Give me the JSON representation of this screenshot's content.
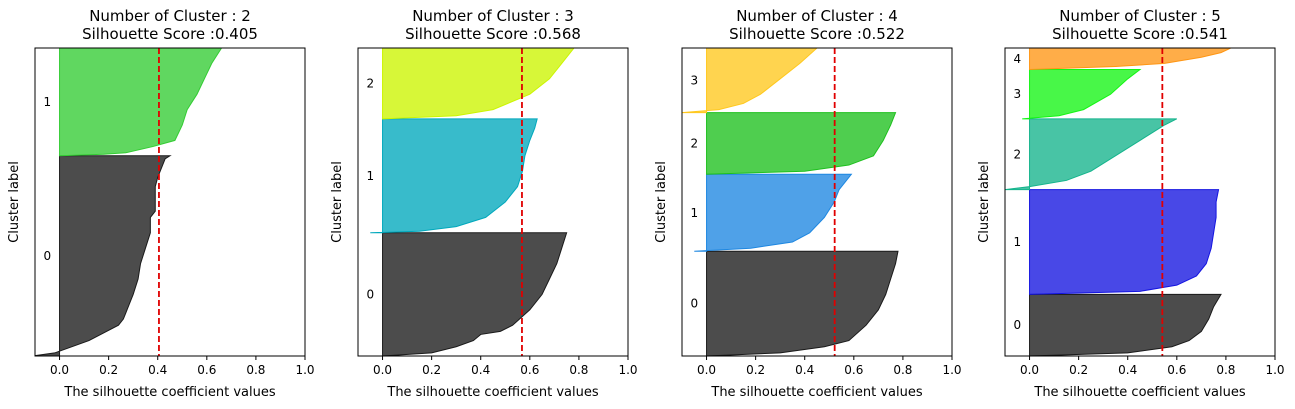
{
  "chart_data": [
    {
      "type": "area",
      "title_line1": "Number of Cluster : 2",
      "title_line2": "Silhouette Score :0.405",
      "xlabel": "The silhouette coefficient values",
      "ylabel": "Cluster label",
      "xlim": [
        -0.1,
        1.0
      ],
      "xticks": [
        "0.0",
        "0.2",
        "0.4",
        "0.6",
        "0.8",
        "1.0"
      ],
      "xtick_values": [
        0.0,
        0.2,
        0.4,
        0.6,
        0.8,
        1.0
      ],
      "ylim": [
        0,
        100
      ],
      "silhouette_score": 0.405,
      "clusters": [
        {
          "label": "0",
          "color": "#1a1a1a",
          "y_start": 0,
          "y_end": 65,
          "profile": [
            [
              0,
              -0.11
            ],
            [
              1,
              -0.02
            ],
            [
              5,
              0.12
            ],
            [
              10,
              0.24
            ],
            [
              12,
              0.26
            ],
            [
              14,
              0.27
            ],
            [
              18,
              0.29
            ],
            [
              20,
              0.3
            ],
            [
              25,
              0.32
            ],
            [
              30,
              0.33
            ],
            [
              35,
              0.35
            ],
            [
              40,
              0.37
            ],
            [
              45,
              0.37
            ],
            [
              47,
              0.39
            ],
            [
              48,
              0.39
            ],
            [
              50,
              0.39
            ],
            [
              55,
              0.39
            ],
            [
              58,
              0.4
            ],
            [
              62,
              0.42
            ],
            [
              64,
              0.43
            ],
            [
              65,
              0.45
            ]
          ]
        },
        {
          "label": "1",
          "color": "#33cc33",
          "y_start": 65,
          "y_end": 100,
          "profile": [
            [
              65,
              0.0
            ],
            [
              65.5,
              0.18
            ],
            [
              66,
              0.27
            ],
            [
              68,
              0.38
            ],
            [
              70,
              0.47
            ],
            [
              75,
              0.5
            ],
            [
              80,
              0.52
            ],
            [
              85,
              0.56
            ],
            [
              90,
              0.59
            ],
            [
              95,
              0.62
            ],
            [
              100,
              0.66
            ]
          ]
        }
      ]
    },
    {
      "type": "area",
      "title_line1": "Number of Cluster : 3",
      "title_line2": "Silhouette Score :0.568",
      "xlabel": "The silhouette coefficient values",
      "ylabel": "Cluster label",
      "xlim": [
        -0.1,
        1.0
      ],
      "xticks": [
        "0.0",
        "0.2",
        "0.4",
        "0.6",
        "0.8",
        "1.0"
      ],
      "xtick_values": [
        0.0,
        0.2,
        0.4,
        0.6,
        0.8,
        1.0
      ],
      "ylim": [
        0,
        100
      ],
      "silhouette_score": 0.568,
      "clusters": [
        {
          "label": "0",
          "color": "#1a1a1a",
          "y_start": 0,
          "y_end": 40,
          "profile": [
            [
              0,
              0.0
            ],
            [
              1,
              0.2
            ],
            [
              3,
              0.3
            ],
            [
              5,
              0.37
            ],
            [
              7,
              0.4
            ],
            [
              8,
              0.48
            ],
            [
              10,
              0.53
            ],
            [
              15,
              0.6
            ],
            [
              20,
              0.65
            ],
            [
              25,
              0.68
            ],
            [
              30,
              0.71
            ],
            [
              35,
              0.73
            ],
            [
              40,
              0.75
            ]
          ]
        },
        {
          "label": "1",
          "color": "#00a8bc",
          "y_start": 40,
          "y_end": 77,
          "profile": [
            [
              40,
              -0.05
            ],
            [
              40.5,
              0.15
            ],
            [
              42,
              0.3
            ],
            [
              45,
              0.42
            ],
            [
              50,
              0.5
            ],
            [
              55,
              0.55
            ],
            [
              60,
              0.57
            ],
            [
              65,
              0.58
            ],
            [
              70,
              0.6
            ],
            [
              74,
              0.62
            ],
            [
              77,
              0.63
            ]
          ]
        },
        {
          "label": "2",
          "color": "#ccf500",
          "y_start": 77,
          "y_end": 100,
          "profile": [
            [
              77,
              0.0
            ],
            [
              78,
              0.3
            ],
            [
              80,
              0.45
            ],
            [
              85,
              0.6
            ],
            [
              90,
              0.68
            ],
            [
              95,
              0.73
            ],
            [
              100,
              0.78
            ]
          ]
        }
      ]
    },
    {
      "type": "area",
      "title_line1": "Number of Cluster : 4",
      "title_line2": "Silhouette Score :0.522",
      "xlabel": "The silhouette coefficient values",
      "ylabel": "Cluster label",
      "xlim": [
        -0.1,
        1.0
      ],
      "xticks": [
        "0.0",
        "0.2",
        "0.4",
        "0.6",
        "0.8",
        "1.0"
      ],
      "xtick_values": [
        0.0,
        0.2,
        0.4,
        0.6,
        0.8,
        1.0
      ],
      "ylim": [
        0,
        100
      ],
      "silhouette_score": 0.522,
      "clusters": [
        {
          "label": "0",
          "color": "#1a1a1a",
          "y_start": 0,
          "y_end": 34,
          "profile": [
            [
              0,
              0.0
            ],
            [
              1,
              0.3
            ],
            [
              3,
              0.48
            ],
            [
              5,
              0.58
            ],
            [
              10,
              0.65
            ],
            [
              15,
              0.7
            ],
            [
              20,
              0.73
            ],
            [
              25,
              0.75
            ],
            [
              30,
              0.77
            ],
            [
              34,
              0.78
            ]
          ]
        },
        {
          "label": "1",
          "color": "#1e87e1",
          "y_start": 34,
          "y_end": 59,
          "profile": [
            [
              34,
              -0.05
            ],
            [
              35,
              0.18
            ],
            [
              37,
              0.35
            ],
            [
              40,
              0.42
            ],
            [
              45,
              0.48
            ],
            [
              50,
              0.52
            ],
            [
              54,
              0.54
            ],
            [
              57,
              0.57
            ],
            [
              59,
              0.59
            ]
          ]
        },
        {
          "label": "2",
          "color": "#1ec01e",
          "y_start": 59,
          "y_end": 79,
          "profile": [
            [
              59,
              0.0
            ],
            [
              60,
              0.4
            ],
            [
              62,
              0.58
            ],
            [
              65,
              0.68
            ],
            [
              70,
              0.72
            ],
            [
              75,
              0.75
            ],
            [
              79,
              0.77
            ]
          ]
        },
        {
          "label": "3",
          "color": "#ffc81e",
          "y_start": 79,
          "y_end": 100,
          "profile": [
            [
              79,
              -0.1
            ],
            [
              80,
              0.05
            ],
            [
              82,
              0.15
            ],
            [
              85,
              0.22
            ],
            [
              90,
              0.3
            ],
            [
              95,
              0.38
            ],
            [
              100,
              0.45
            ]
          ]
        }
      ]
    },
    {
      "type": "area",
      "title_line1": "Number of Cluster : 5",
      "title_line2": "Silhouette Score :0.541",
      "xlabel": "The silhouette coefficient values",
      "ylabel": "Cluster label",
      "xlim": [
        -0.1,
        1.0
      ],
      "xticks": [
        "0.0",
        "0.2",
        "0.4",
        "0.6",
        "0.8",
        "1.0"
      ],
      "xtick_values": [
        0.0,
        0.2,
        0.4,
        0.6,
        0.8,
        1.0
      ],
      "ylim": [
        0,
        100
      ],
      "silhouette_score": 0.541,
      "clusters": [
        {
          "label": "0",
          "color": "#1a1a1a",
          "y_start": 0,
          "y_end": 20,
          "profile": [
            [
              0,
              0.0
            ],
            [
              1,
              0.4
            ],
            [
              3,
              0.58
            ],
            [
              5,
              0.65
            ],
            [
              8,
              0.7
            ],
            [
              12,
              0.73
            ],
            [
              16,
              0.75
            ],
            [
              20,
              0.78
            ]
          ]
        },
        {
          "label": "1",
          "color": "#1414e0",
          "y_start": 20,
          "y_end": 54,
          "profile": [
            [
              20,
              0.0
            ],
            [
              21,
              0.45
            ],
            [
              23,
              0.6
            ],
            [
              26,
              0.68
            ],
            [
              30,
              0.72
            ],
            [
              35,
              0.74
            ],
            [
              40,
              0.75
            ],
            [
              45,
              0.76
            ],
            [
              50,
              0.76
            ],
            [
              54,
              0.77
            ]
          ]
        },
        {
          "label": "2",
          "color": "#14b48c",
          "y_start": 54,
          "y_end": 77,
          "profile": [
            [
              54,
              -0.1
            ],
            [
              55,
              0.0
            ],
            [
              57,
              0.15
            ],
            [
              60,
              0.25
            ],
            [
              65,
              0.35
            ],
            [
              70,
              0.45
            ],
            [
              75,
              0.55
            ],
            [
              77,
              0.6
            ]
          ]
        },
        {
          "label": "3",
          "color": "#14f514",
          "y_start": 77,
          "y_end": 93,
          "profile": [
            [
              77,
              -0.03
            ],
            [
              78,
              0.12
            ],
            [
              80,
              0.22
            ],
            [
              85,
              0.33
            ],
            [
              90,
              0.4
            ],
            [
              93,
              0.45
            ]
          ]
        },
        {
          "label": "4",
          "color": "#ff9614",
          "y_start": 93,
          "y_end": 100,
          "profile": [
            [
              93,
              0.0
            ],
            [
              94,
              0.35
            ],
            [
              95,
              0.55
            ],
            [
              97,
              0.7
            ],
            [
              98.5,
              0.78
            ],
            [
              100,
              0.82
            ]
          ]
        }
      ]
    }
  ]
}
